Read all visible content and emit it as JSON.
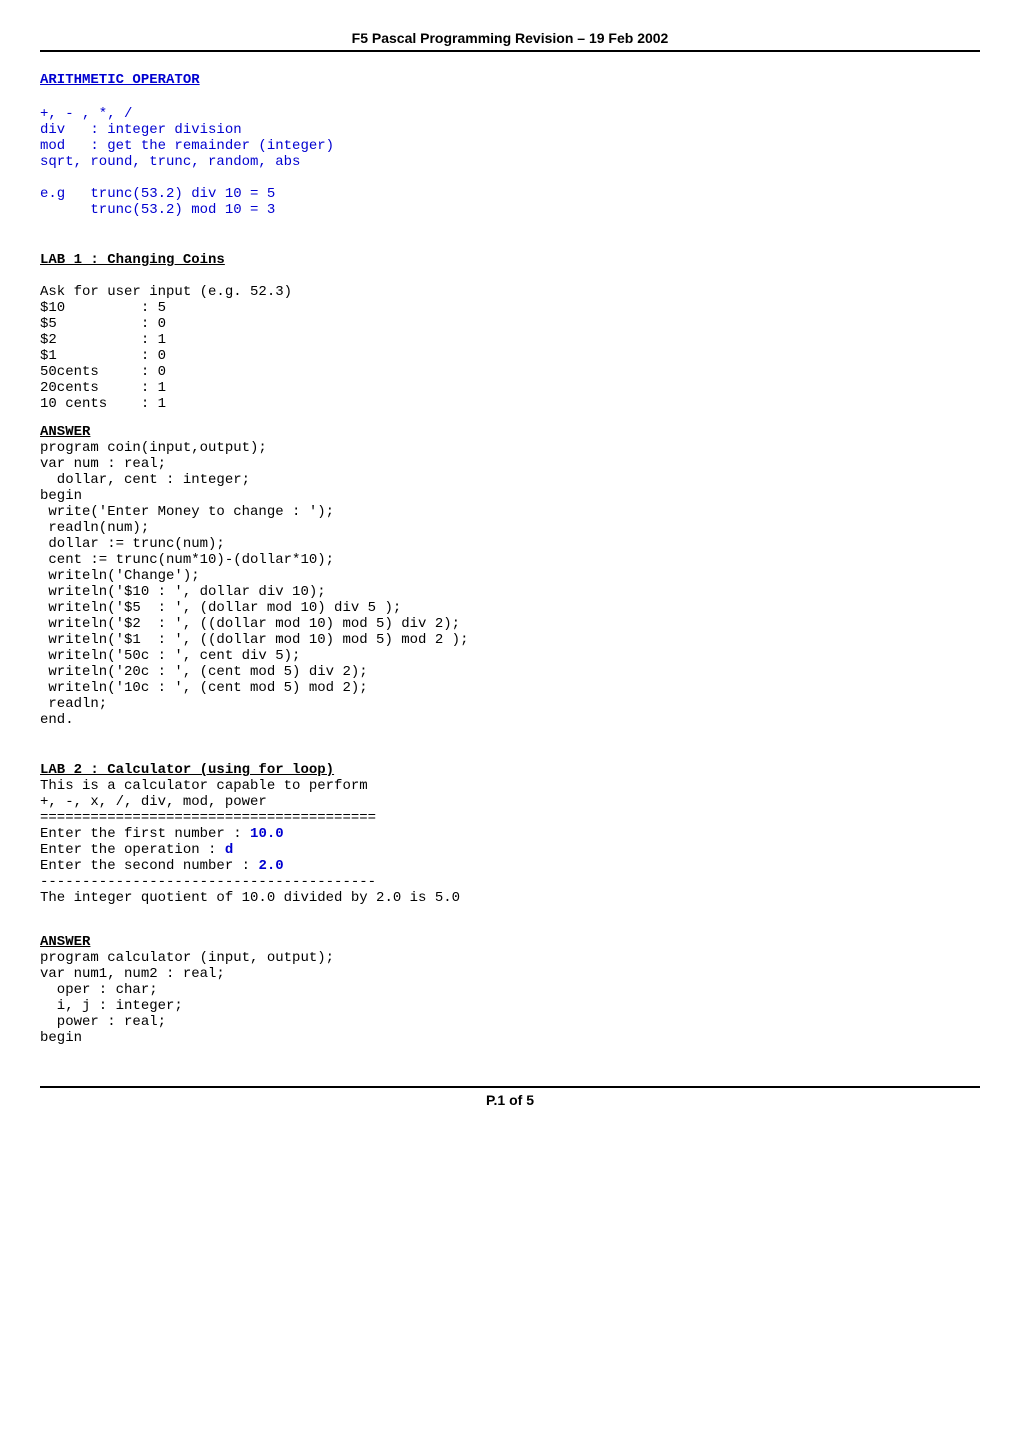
{
  "header": "F5 Pascal Programming Revision – 19 Feb 2002",
  "sections": {
    "arith": {
      "heading": "ARITHMETIC OPERATOR",
      "lines": [
        "+, - , *, /",
        "div   : integer division",
        "mod   : get the remainder (integer)",
        "sqrt, round, trunc, random, abs",
        "",
        "e.g   trunc(53.2) div 10 = 5",
        "      trunc(53.2) mod 10 = 3"
      ]
    },
    "lab1": {
      "heading": "LAB 1 : Changing Coins",
      "desc": "Ask for user input (e.g. 52.3)\n$10         : 5\n$5          : 0\n$2          : 1\n$1          : 0\n50cents     : 0\n20cents     : 1\n10 cents    : 1",
      "answer_label": "ANSWER",
      "code": "program coin(input,output);\nvar num : real;\n  dollar, cent : integer;\nbegin\n write('Enter Money to change : ');\n readln(num);\n dollar := trunc(num);\n cent := trunc(num*10)-(dollar*10);\n writeln('Change');\n writeln('$10 : ', dollar div 10);\n writeln('$5  : ', (dollar mod 10) div 5 );\n writeln('$2  : ', ((dollar mod 10) mod 5) div 2);\n writeln('$1  : ', ((dollar mod 10) mod 5) mod 2 );\n writeln('50c : ', cent div 5);\n writeln('20c : ', (cent mod 5) div 2);\n writeln('10c : ', (cent mod 5) mod 2);\n readln;\nend."
    },
    "lab2": {
      "heading": "LAB 2 : Calculator (using for loop)",
      "intro1": "This is a calculator capable to perform",
      "intro2": "+, -, x, /, div, mod, power",
      "sep1": "========================================",
      "p1a": "Enter the first number : ",
      "p1b": "10.0",
      "p2a": "Enter the operation : ",
      "p2b": "d",
      "p3a": "Enter the second number : ",
      "p3b": "2.0",
      "sep2": "----------------------------------------",
      "result": "The integer quotient of 10.0 divided by 2.0 is 5.0",
      "answer_label": "ANSWER",
      "code": "program calculator (input, output);\nvar num1, num2 : real;\n  oper : char;\n  i, j : integer;\n  power : real;\nbegin"
    }
  },
  "footer": "P.1 of 5",
  "colors": {
    "blue": "#0000d0"
  }
}
